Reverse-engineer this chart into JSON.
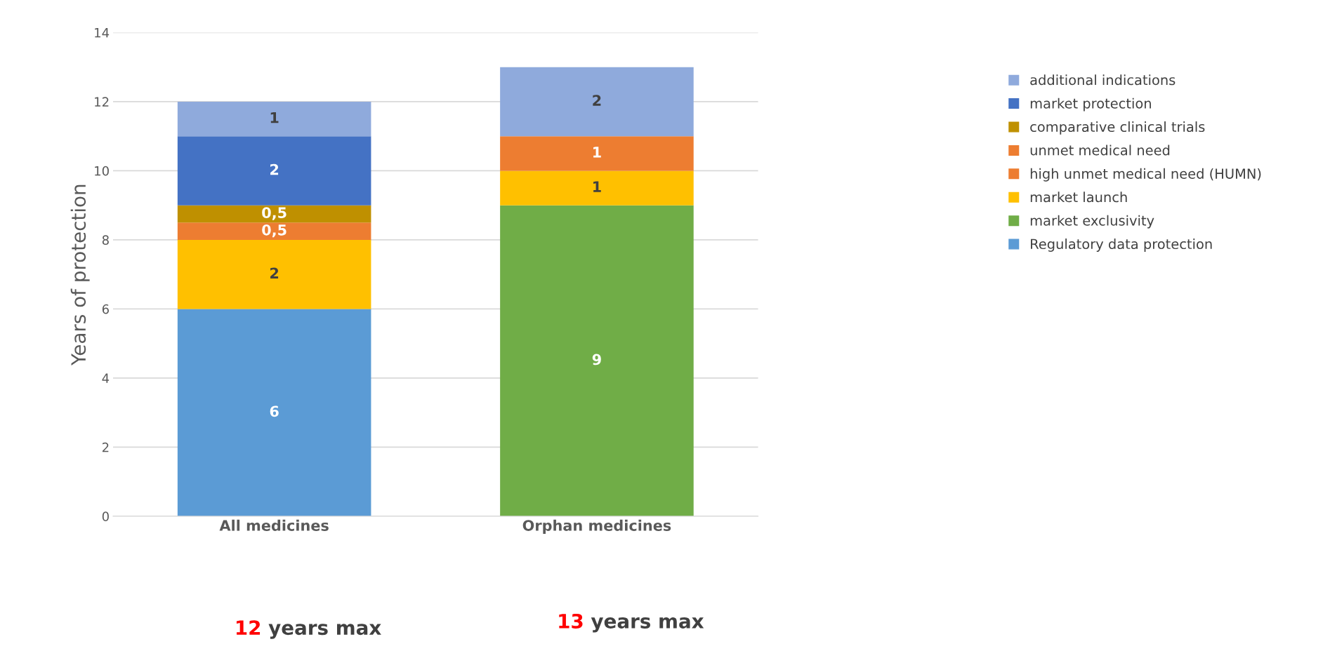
{
  "chart_data": {
    "type": "bar",
    "stacked": true,
    "ylabel": "Years of protection",
    "categories": [
      "All medicines",
      "Orphan medicines"
    ],
    "series": [
      {
        "name": "Regulatory data protection",
        "color": "#5b9bd5",
        "values": [
          6,
          null
        ],
        "value_labels": [
          "6",
          null
        ]
      },
      {
        "name": "market exclusivity",
        "color": "#70ad47",
        "values": [
          null,
          9
        ],
        "value_labels": [
          null,
          "9"
        ]
      },
      {
        "name": "market launch",
        "color": "#ffc000",
        "values": [
          2,
          1
        ],
        "value_labels": [
          "2",
          "1"
        ]
      },
      {
        "name": "high unmet medical need (HUMN)",
        "color": "#ed7d31",
        "values": [
          null,
          1
        ],
        "value_labels": [
          null,
          "1"
        ]
      },
      {
        "name": "unmet medical need",
        "color": "#ed7d31",
        "values": [
          0.5,
          null
        ],
        "value_labels": [
          "0,5",
          null
        ]
      },
      {
        "name": "comparative clinical trials",
        "color": "#bf9000",
        "values": [
          0.5,
          null
        ],
        "value_labels": [
          "0,5",
          null
        ]
      },
      {
        "name": "market protection",
        "color": "#4472c4",
        "values": [
          2,
          null
        ],
        "value_labels": [
          "2",
          null
        ]
      },
      {
        "name": "additional indications",
        "color": "#8faadc",
        "values": [
          1,
          2
        ],
        "value_labels": [
          "1",
          "2"
        ]
      }
    ],
    "ylim": [
      0,
      14
    ],
    "yticks": [
      0,
      2,
      4,
      6,
      8,
      10,
      12,
      14
    ],
    "grid": "y",
    "legend": "right",
    "annotations": [
      "12 years max",
      "13 years max"
    ]
  }
}
